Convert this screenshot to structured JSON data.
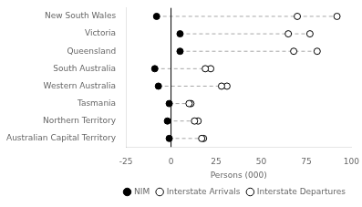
{
  "chart_data": {
    "type": "dumbbell",
    "categories": [
      "New South Wales",
      "Victoria",
      "Queensland",
      "South Australia",
      "Western Australia",
      "Tasmania",
      "Northern Territory",
      "Australian Capital Territory"
    ],
    "series": [
      {
        "name": "NIM",
        "color": "#000000",
        "marker": "filled_circle",
        "values": [
          -8,
          5,
          5,
          -9,
          -7,
          -1,
          -2,
          -1
        ]
      },
      {
        "name": "Interstate Arrivals",
        "color": "#000000",
        "marker": "open_circle",
        "values": [
          70,
          65,
          68,
          19,
          28,
          10,
          13,
          17
        ]
      },
      {
        "name": "Interstate Departures",
        "color": "#000000",
        "marker": "open_circle",
        "values": [
          92,
          77,
          81,
          22,
          31,
          11,
          15,
          18
        ]
      }
    ],
    "xlabel": "Persons (000)",
    "xlim": [
      -25,
      100
    ],
    "xticks": [
      -25,
      0,
      25,
      50,
      75,
      100
    ],
    "vline": 0,
    "line_style": "dashed",
    "grid": false,
    "legend": "lower right"
  }
}
